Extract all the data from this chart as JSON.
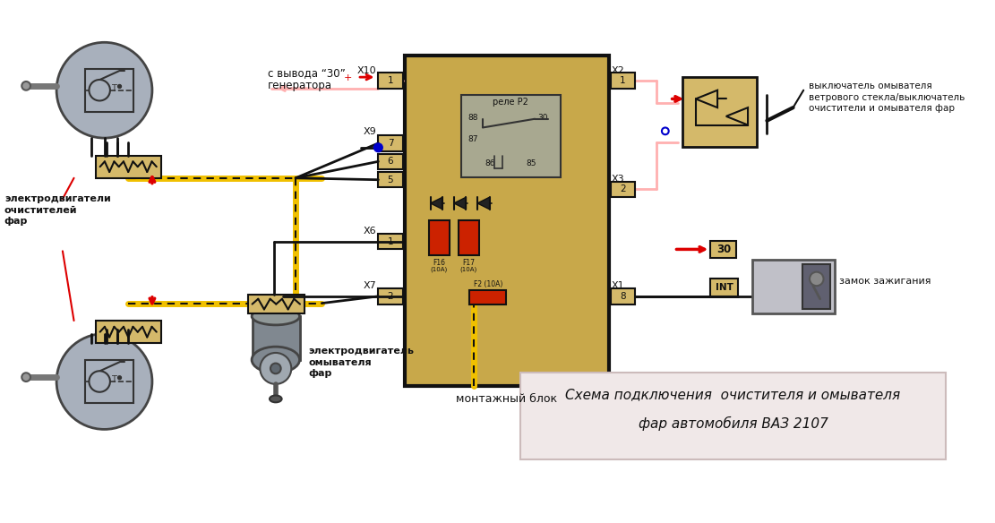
{
  "bg_color": "#ffffff",
  "block_fill": "#c8a84a",
  "block_border": "#111111",
  "relay_fill": "#a8a890",
  "connector_fill": "#d4b96a",
  "connector_border": "#111111",
  "fuse_fill": "#cc2200",
  "motor_fill": "#a8b0bc",
  "motor_border": "#444444",
  "motor_case_fill": "#888898",
  "resistor_fill": "#d4b96a",
  "switch_fill": "#d4b96a",
  "ignition_fill": "#c0c0c8",
  "ignition_dark": "#606070",
  "wire_black": "#111111",
  "wire_yellow": "#f0c000",
  "wire_pink": "#ffb0b0",
  "wire_red": "#dd0000",
  "wire_blue": "#0000cc",
  "caption_fill": "#f0e8e8",
  "caption_border": "#ccbbbb",
  "text_black": "#111111",
  "label_generator1": "с вывода “30”",
  "label_generator2": "генератора",
  "label_motor1": "электродвигатели",
  "label_motor2": "очистителей",
  "label_motor3": "фар",
  "label_washer1": "электродвигатель",
  "label_washer2": "омывателя",
  "label_washer3": "фар",
  "label_switch1": "выключатель омывателя",
  "label_switch2": "ветрового стекла/выключатель",
  "label_switch3": "очистители и омывателя фар",
  "label_ignition": "замок зажигания",
  "label_montage": "монтажный блок",
  "label_relay": "реле P2",
  "caption1": "Схема подключения  очистителя и омывателя",
  "caption2": "фар автомобиля ВАЗ 2107"
}
